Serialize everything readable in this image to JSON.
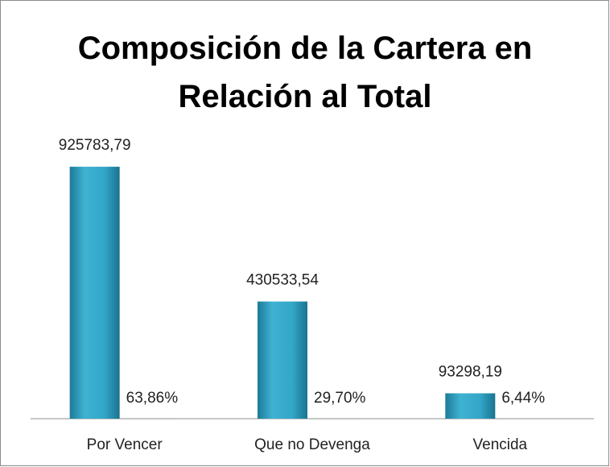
{
  "chart_data": {
    "type": "bar",
    "title": "Composición de la Cartera en Relación al Total",
    "categories": [
      "Por Vencer",
      "Que no Devenga",
      "Vencida"
    ],
    "series": [
      {
        "color": "#2a9cc0",
        "values": [
          925783.79,
          430533.54,
          93298.19
        ],
        "value_labels": [
          "925783,79",
          "430533,54",
          "93298,19"
        ]
      },
      {
        "color": "#2a9cc0",
        "values": [
          63.86,
          29.7,
          6.44
        ],
        "value_labels": [
          "63,86%",
          "29,70%",
          "6,44%"
        ]
      }
    ],
    "ylim": [
      0,
      1000000
    ]
  }
}
